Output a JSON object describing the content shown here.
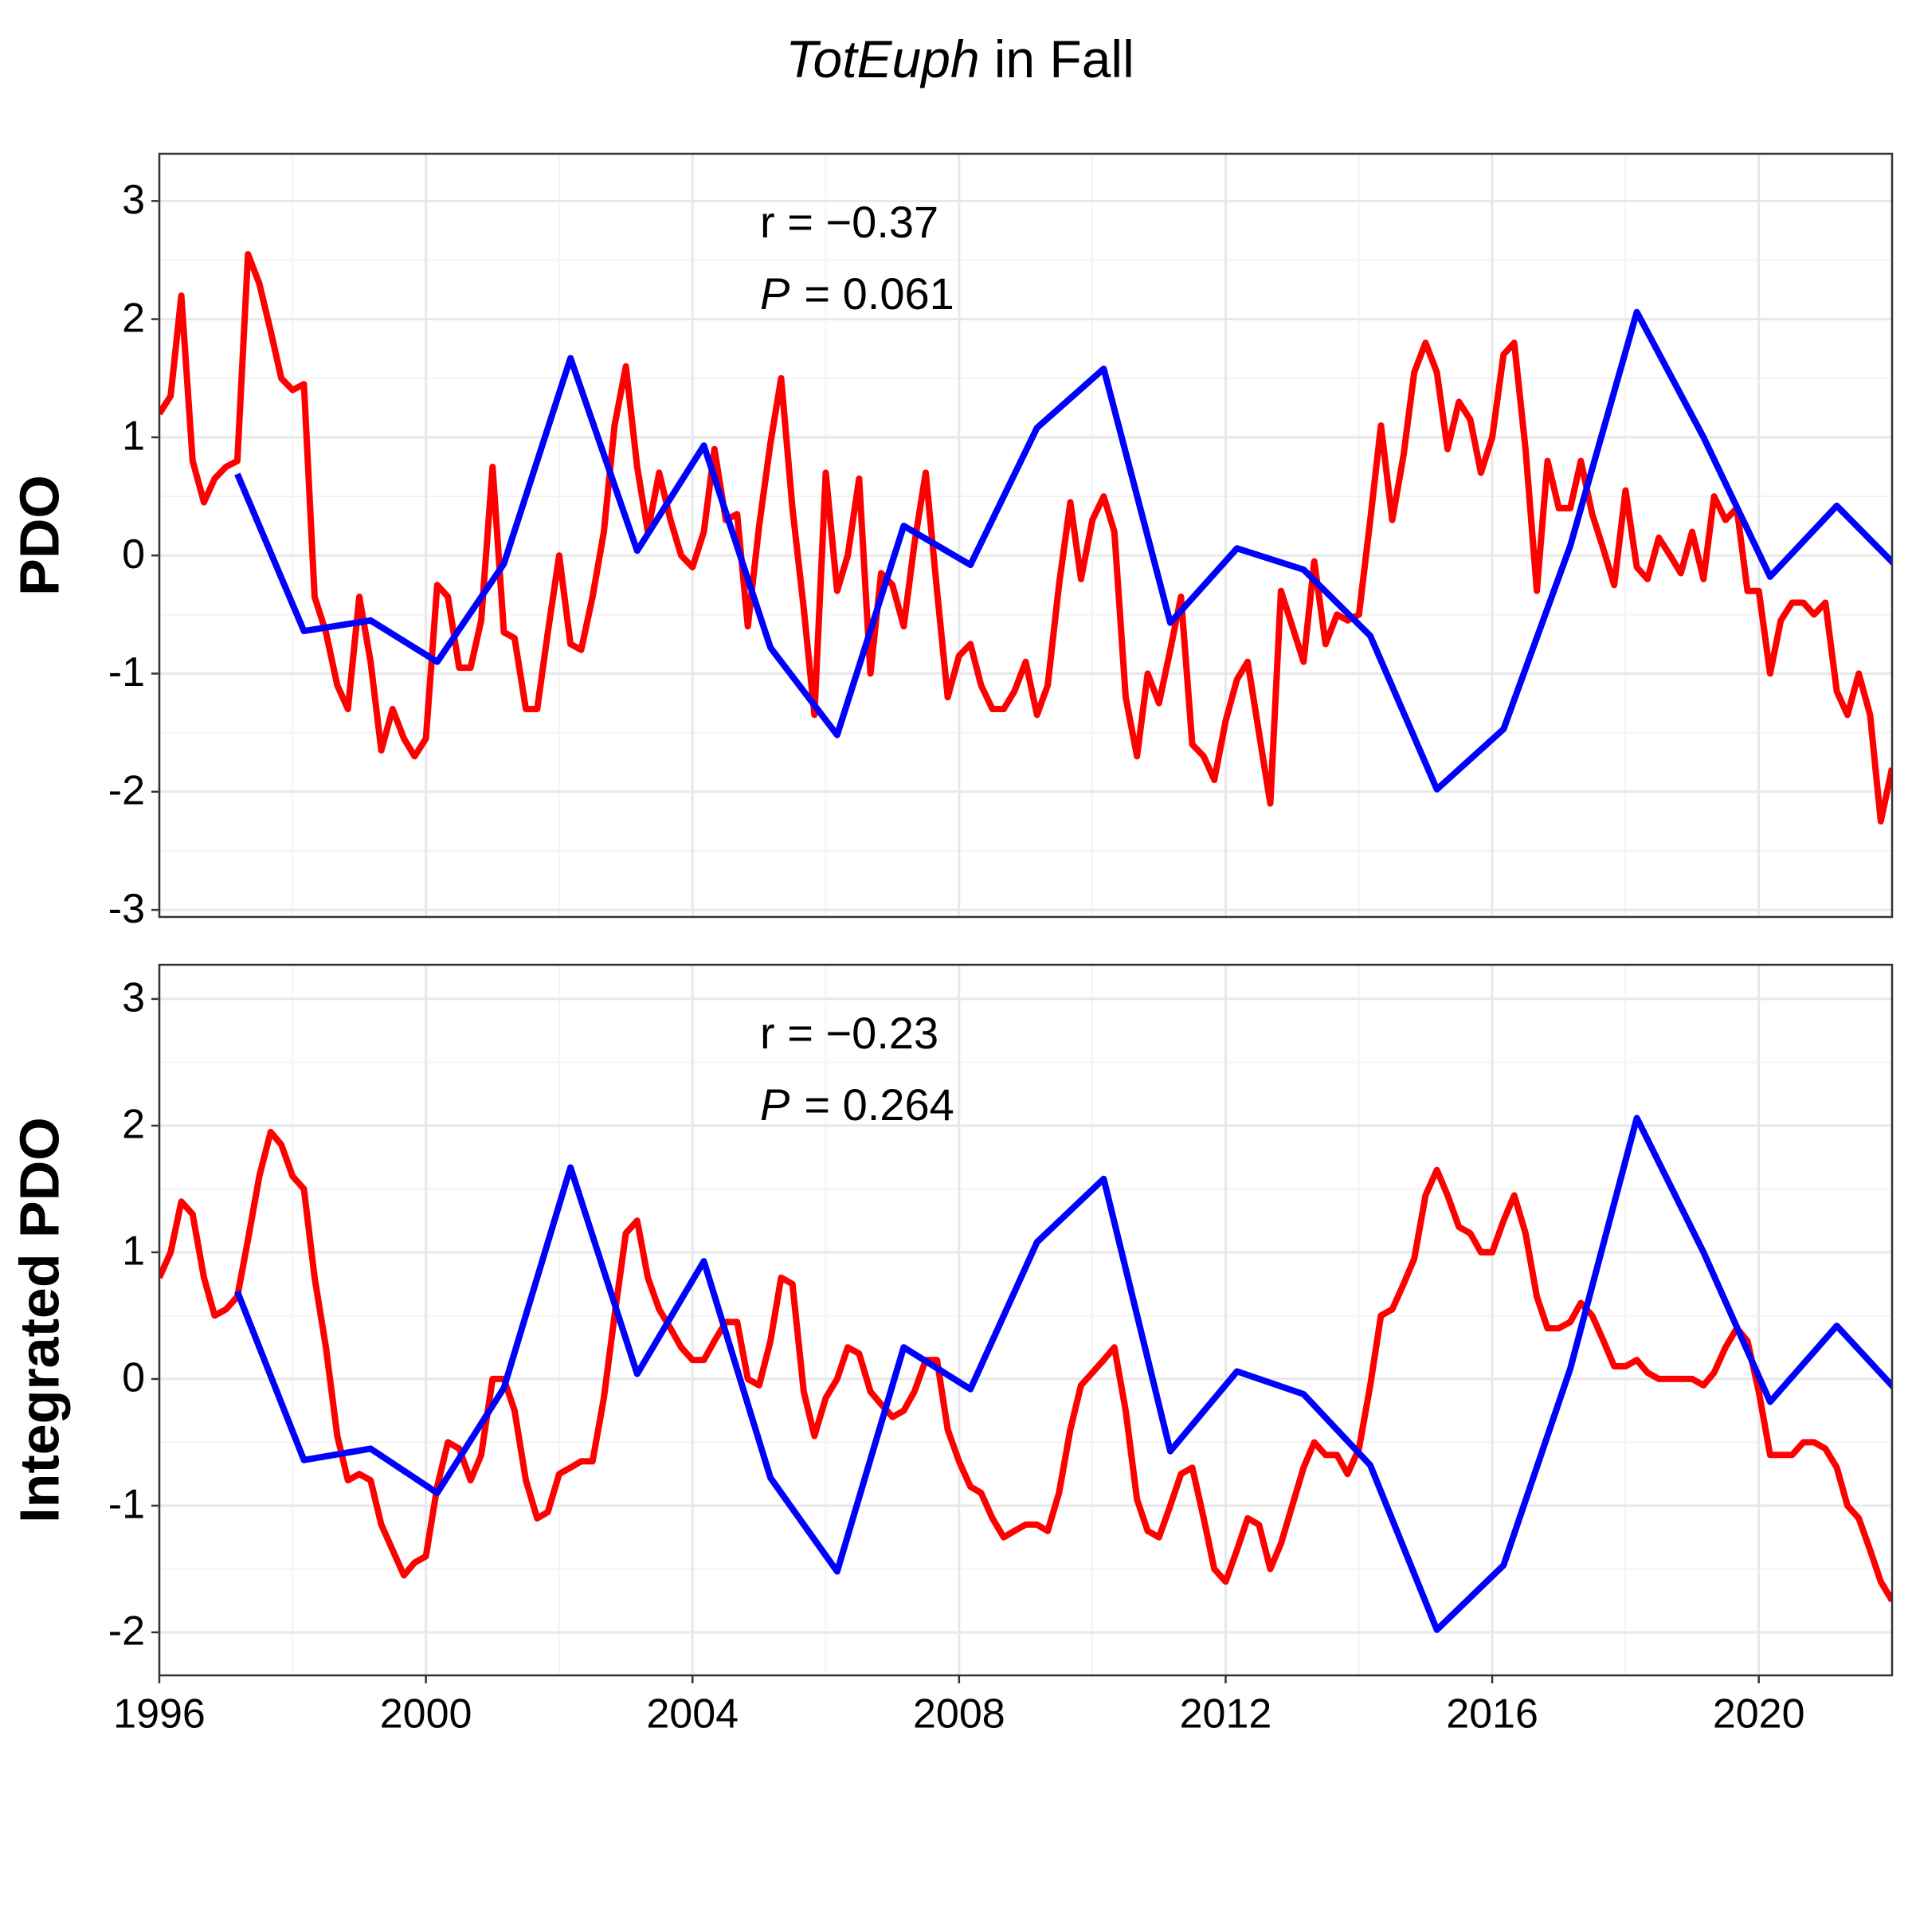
{
  "title": [
    {
      "text": "TotEuph",
      "italic": true
    },
    {
      "text": "in Fall",
      "italic": false
    }
  ],
  "chart_data": [
    {
      "type": "line",
      "ylabel": "PDO",
      "annotation": [
        [
          {
            "text": "r = −0.37",
            "italic": false
          }
        ],
        [
          {
            "text": "P",
            "italic": true
          },
          {
            "text": "= 0.061",
            "italic": false
          }
        ]
      ],
      "xlim": [
        1996,
        2022
      ],
      "xticks": [
        1996,
        2000,
        2004,
        2008,
        2012,
        2016,
        2020
      ],
      "xtick_labels": false,
      "ylim": [
        -3.06,
        3.4
      ],
      "yticks": [
        -3,
        -2,
        -1,
        0,
        1,
        2,
        3
      ],
      "grid": true,
      "minor_grid": true,
      "series": [
        {
          "color": "#ff0000",
          "x": [
            1996,
            1996.17,
            1996.33,
            1996.5,
            1996.67,
            1996.83,
            1997,
            1997.17,
            1997.33,
            1997.5,
            1997.67,
            1997.83,
            1998,
            1998.17,
            1998.33,
            1998.5,
            1998.67,
            1998.83,
            1999,
            1999.17,
            1999.33,
            1999.5,
            1999.67,
            1999.83,
            2000,
            2000.17,
            2000.33,
            2000.5,
            2000.67,
            2000.83,
            2001,
            2001.17,
            2001.33,
            2001.5,
            2001.67,
            2001.83,
            2002,
            2002.17,
            2002.33,
            2002.5,
            2002.67,
            2002.83,
            2003,
            2003.17,
            2003.33,
            2003.5,
            2003.67,
            2003.83,
            2004,
            2004.17,
            2004.33,
            2004.5,
            2004.67,
            2004.83,
            2005,
            2005.17,
            2005.33,
            2005.5,
            2005.67,
            2005.83,
            2006,
            2006.17,
            2006.33,
            2006.5,
            2006.67,
            2006.83,
            2007,
            2007.17,
            2007.33,
            2007.5,
            2007.67,
            2007.83,
            2008,
            2008.17,
            2008.33,
            2008.5,
            2008.67,
            2008.83,
            2009,
            2009.17,
            2009.33,
            2009.5,
            2009.67,
            2009.83,
            2010,
            2010.17,
            2010.33,
            2010.5,
            2010.67,
            2010.83,
            2011,
            2011.17,
            2011.33,
            2011.5,
            2011.67,
            2011.83,
            2012,
            2012.17,
            2012.33,
            2012.5,
            2012.67,
            2012.83,
            2013,
            2013.17,
            2013.33,
            2013.5,
            2013.67,
            2013.83,
            2014,
            2014.17,
            2014.33,
            2014.5,
            2014.67,
            2014.83,
            2015,
            2015.17,
            2015.33,
            2015.5,
            2015.67,
            2015.83,
            2016,
            2016.17,
            2016.33,
            2016.5,
            2016.67,
            2016.83,
            2017,
            2017.17,
            2017.33,
            2017.5,
            2017.67,
            2017.83,
            2018,
            2018.17,
            2018.33,
            2018.5,
            2018.67,
            2018.83,
            2019,
            2019.17,
            2019.33,
            2019.5,
            2019.67,
            2019.83,
            2020,
            2020.17,
            2020.33,
            2020.5,
            2020.67,
            2020.83,
            2021,
            2021.17,
            2021.33,
            2021.5,
            2021.67,
            2021.83,
            2022
          ],
          "values": [
            1.2,
            1.35,
            2.2,
            0.8,
            0.45,
            0.65,
            0.75,
            0.8,
            2.55,
            2.3,
            1.9,
            1.5,
            1.4,
            1.45,
            -0.35,
            -0.65,
            -1.1,
            -1.3,
            -0.35,
            -0.9,
            -1.65,
            -1.3,
            -1.55,
            -1.7,
            -1.55,
            -0.25,
            -0.35,
            -0.95,
            -0.95,
            -0.55,
            0.75,
            -0.65,
            -0.7,
            -1.3,
            -1.3,
            -0.65,
            0.0,
            -0.75,
            -0.8,
            -0.35,
            0.2,
            1.1,
            1.6,
            0.75,
            0.2,
            0.7,
            0.3,
            0.0,
            -0.1,
            0.2,
            0.9,
            0.3,
            0.35,
            -0.6,
            0.25,
            0.95,
            1.5,
            0.4,
            -0.45,
            -1.35,
            0.7,
            -0.3,
            0.0,
            0.65,
            -1.0,
            -0.15,
            -0.25,
            -0.6,
            0.1,
            0.7,
            -0.3,
            -1.2,
            -0.85,
            -0.75,
            -1.1,
            -1.3,
            -1.3,
            -1.15,
            -0.9,
            -1.35,
            -1.1,
            -0.25,
            0.45,
            -0.2,
            0.3,
            0.5,
            0.2,
            -1.2,
            -1.7,
            -1.0,
            -1.25,
            -0.8,
            -0.35,
            -1.6,
            -1.7,
            -1.9,
            -1.4,
            -1.05,
            -0.9,
            -1.5,
            -2.1,
            -0.3,
            -0.6,
            -0.9,
            -0.05,
            -0.75,
            -0.5,
            -0.55,
            -0.5,
            0.3,
            1.1,
            0.3,
            0.85,
            1.55,
            1.8,
            1.55,
            0.9,
            1.3,
            1.15,
            0.7,
            1.0,
            1.7,
            1.8,
            0.9,
            -0.3,
            0.8,
            0.4,
            0.4,
            0.8,
            0.35,
            0.05,
            -0.25,
            0.55,
            -0.1,
            -0.2,
            0.15,
            0.0,
            -0.15,
            0.2,
            -0.2,
            0.5,
            0.3,
            0.4,
            -0.3,
            -0.3,
            -1.0,
            -0.55,
            -0.4,
            -0.4,
            -0.5,
            -0.4,
            -1.15,
            -1.35,
            -1.0,
            -1.35,
            -2.25,
            -1.8
          ]
        },
        {
          "color": "#0000ff",
          "x": [
            1997.17,
            1998.17,
            1999.17,
            2000.17,
            2001.17,
            2002.17,
            2003.17,
            2004.17,
            2005.17,
            2006.17,
            2007.17,
            2008.17,
            2009.17,
            2010.17,
            2011.17,
            2012.17,
            2013.17,
            2014.17,
            2015.17,
            2016.17,
            2017.17,
            2018.17,
            2019.17,
            2020.17,
            2021.17,
            2022.17
          ],
          "values": [
            0.69,
            -0.64,
            -0.55,
            -0.9,
            -0.07,
            1.67,
            0.04,
            0.93,
            -0.78,
            -1.52,
            0.25,
            -0.08,
            1.08,
            1.58,
            -0.57,
            0.06,
            -0.12,
            -0.68,
            -1.98,
            -1.47,
            0.08,
            2.06,
            1.0,
            -0.18,
            0.42,
            -0.15
          ]
        }
      ]
    },
    {
      "type": "line",
      "ylabel": "Integrated PDO",
      "annotation": [
        [
          {
            "text": "r = −0.23",
            "italic": false
          }
        ],
        [
          {
            "text": "P",
            "italic": true
          },
          {
            "text": "= 0.264",
            "italic": false
          }
        ]
      ],
      "xlim": [
        1996,
        2022
      ],
      "xticks": [
        1996,
        2000,
        2004,
        2008,
        2012,
        2016,
        2020
      ],
      "xtick_labels": true,
      "ylim": [
        -2.34,
        3.27
      ],
      "yticks": [
        -2,
        -1,
        0,
        1,
        2,
        3
      ],
      "grid": true,
      "minor_grid": true,
      "series": [
        {
          "color": "#ff0000",
          "x": [
            1996,
            1996.17,
            1996.33,
            1996.5,
            1996.67,
            1996.83,
            1997,
            1997.17,
            1997.33,
            1997.5,
            1997.67,
            1997.83,
            1998,
            1998.17,
            1998.33,
            1998.5,
            1998.67,
            1998.83,
            1999,
            1999.17,
            1999.33,
            1999.5,
            1999.67,
            1999.83,
            2000,
            2000.17,
            2000.33,
            2000.5,
            2000.67,
            2000.83,
            2001,
            2001.17,
            2001.33,
            2001.5,
            2001.67,
            2001.83,
            2002,
            2002.17,
            2002.33,
            2002.5,
            2002.67,
            2002.83,
            2003,
            2003.17,
            2003.33,
            2003.5,
            2003.67,
            2003.83,
            2004,
            2004.17,
            2004.33,
            2004.5,
            2004.67,
            2004.83,
            2005,
            2005.17,
            2005.33,
            2005.5,
            2005.67,
            2005.83,
            2006,
            2006.17,
            2006.33,
            2006.5,
            2006.67,
            2006.83,
            2007,
            2007.17,
            2007.33,
            2007.5,
            2007.67,
            2007.83,
            2008,
            2008.17,
            2008.33,
            2008.5,
            2008.67,
            2008.83,
            2009,
            2009.17,
            2009.33,
            2009.5,
            2009.67,
            2009.83,
            2010,
            2010.17,
            2010.33,
            2010.5,
            2010.67,
            2010.83,
            2011,
            2011.17,
            2011.33,
            2011.5,
            2011.67,
            2011.83,
            2012,
            2012.17,
            2012.33,
            2012.5,
            2012.67,
            2012.83,
            2013,
            2013.17,
            2013.33,
            2013.5,
            2013.67,
            2013.83,
            2014,
            2014.17,
            2014.33,
            2014.5,
            2014.67,
            2014.83,
            2015,
            2015.17,
            2015.33,
            2015.5,
            2015.67,
            2015.83,
            2016,
            2016.17,
            2016.33,
            2016.5,
            2016.67,
            2016.83,
            2017,
            2017.17,
            2017.33,
            2017.5,
            2017.67,
            2017.83,
            2018,
            2018.17,
            2018.33,
            2018.5,
            2018.67,
            2018.83,
            2019,
            2019.17,
            2019.33,
            2019.5,
            2019.67,
            2019.83,
            2020,
            2020.17,
            2020.33,
            2020.5,
            2020.67,
            2020.83,
            2021,
            2021.17,
            2021.33,
            2021.5,
            2021.67,
            2021.83,
            2022
          ],
          "values": [
            0.8,
            1.0,
            1.4,
            1.3,
            0.8,
            0.5,
            0.55,
            0.65,
            1.1,
            1.6,
            1.95,
            1.85,
            1.6,
            1.5,
            0.8,
            0.25,
            -0.45,
            -0.8,
            -0.75,
            -0.8,
            -1.15,
            -1.35,
            -1.55,
            -1.45,
            -1.4,
            -0.85,
            -0.5,
            -0.55,
            -0.8,
            -0.6,
            0.0,
            0.0,
            -0.25,
            -0.8,
            -1.1,
            -1.05,
            -0.75,
            -0.7,
            -0.65,
            -0.65,
            -0.15,
            0.5,
            1.15,
            1.25,
            0.8,
            0.55,
            0.4,
            0.25,
            0.15,
            0.15,
            0.3,
            0.45,
            0.45,
            0.0,
            -0.05,
            0.3,
            0.8,
            0.75,
            -0.1,
            -0.45,
            -0.15,
            0.0,
            0.25,
            0.2,
            -0.1,
            -0.2,
            -0.3,
            -0.25,
            -0.1,
            0.15,
            0.15,
            -0.4,
            -0.65,
            -0.85,
            -0.9,
            -1.1,
            -1.25,
            -1.2,
            -1.15,
            -1.15,
            -1.2,
            -0.9,
            -0.4,
            -0.05,
            0.05,
            0.15,
            0.25,
            -0.25,
            -0.95,
            -1.2,
            -1.25,
            -1.0,
            -0.75,
            -0.7,
            -1.1,
            -1.5,
            -1.6,
            -1.35,
            -1.1,
            -1.15,
            -1.5,
            -1.3,
            -1.0,
            -0.7,
            -0.5,
            -0.6,
            -0.6,
            -0.75,
            -0.55,
            -0.05,
            0.5,
            0.55,
            0.75,
            0.95,
            1.45,
            1.65,
            1.45,
            1.2,
            1.15,
            1.0,
            1.0,
            1.25,
            1.45,
            1.15,
            0.65,
            0.4,
            0.4,
            0.45,
            0.6,
            0.5,
            0.3,
            0.1,
            0.1,
            0.15,
            0.05,
            0.0,
            0.0,
            0.0,
            0.0,
            -0.05,
            0.05,
            0.25,
            0.4,
            0.3,
            -0.1,
            -0.6,
            -0.6,
            -0.6,
            -0.5,
            -0.5,
            -0.55,
            -0.7,
            -1.0,
            -1.1,
            -1.35,
            -1.6,
            -1.75
          ]
        },
        {
          "color": "#0000ff",
          "x": [
            1997.17,
            1998.17,
            1999.17,
            2000.17,
            2001.17,
            2002.17,
            2003.17,
            2004.17,
            2005.17,
            2006.17,
            2007.17,
            2008.17,
            2009.17,
            2010.17,
            2011.17,
            2012.17,
            2013.17,
            2014.17,
            2015.17,
            2016.17,
            2017.17,
            2018.17,
            2019.17,
            2020.17,
            2021.17,
            2022.17
          ],
          "values": [
            0.69,
            -0.64,
            -0.55,
            -0.9,
            -0.07,
            1.67,
            0.04,
            0.93,
            -0.78,
            -1.52,
            0.25,
            -0.08,
            1.08,
            1.58,
            -0.57,
            0.06,
            -0.12,
            -0.68,
            -1.98,
            -1.47,
            0.08,
            2.06,
            1.0,
            -0.18,
            0.42,
            -0.15
          ]
        }
      ]
    }
  ]
}
